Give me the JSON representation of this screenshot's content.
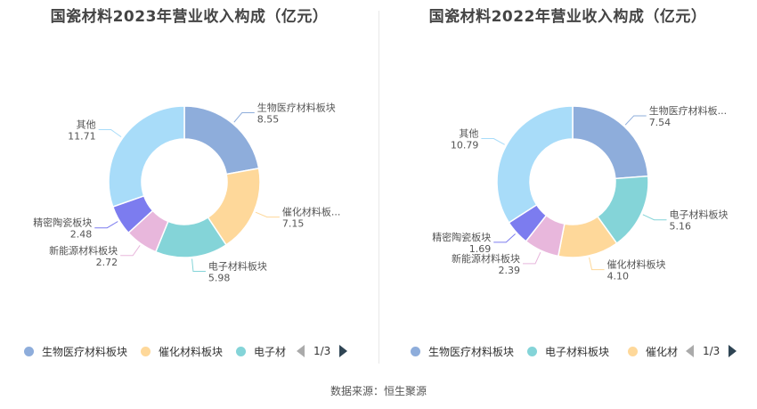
{
  "charts": [
    {
      "title": "国瓷材料2023年营业收入构成（亿元）",
      "legend_items": [
        "生物医疗材料板块",
        "催化材料板块",
        "电子材"
      ],
      "pager": "1/3"
    },
    {
      "title": "国瓷材料2022年营业收入构成（亿元）",
      "legend_items": [
        "生物医疗材料板块",
        "电子材料板块",
        "催化材"
      ],
      "pager": "1/3"
    }
  ],
  "source": "数据来源：恒生聚源",
  "colors": {
    "生物医疗材料板块": "#8eaddb",
    "电子材料板块": "#84d4d8",
    "催化材料板块": "#fed89a",
    "新能源材料板块": "#e8b7dc",
    "精密陶瓷板块": "#7c7cef",
    "其他": "#a8dcf9"
  },
  "chart_data": [
    {
      "type": "pie",
      "title": "国瓷材料2023年营业收入构成（亿元）",
      "slices": [
        {
          "name": "生物医疗材料板块",
          "label": "生物医疗材料板块",
          "value": 8.55,
          "value_text": "8.55",
          "color": "#8eaddb"
        },
        {
          "name": "催化材料板块",
          "label": "催化材料板...",
          "value": 7.15,
          "value_text": "7.15",
          "color": "#fed89a"
        },
        {
          "name": "电子材料板块",
          "label": "电子材料板块",
          "value": 5.98,
          "value_text": "5.98",
          "color": "#84d4d8"
        },
        {
          "name": "新能源材料板块",
          "label": "新能源材料板块",
          "value": 2.72,
          "value_text": "2.72",
          "color": "#e8b7dc"
        },
        {
          "name": "精密陶瓷板块",
          "label": "精密陶瓷板块",
          "value": 2.48,
          "value_text": "2.48",
          "color": "#7c7cef"
        },
        {
          "name": "其他",
          "label": "其他",
          "value": 11.71,
          "value_text": "11.71",
          "color": "#a8dcf9"
        }
      ]
    },
    {
      "type": "pie",
      "title": "国瓷材料2022年营业收入构成（亿元）",
      "slices": [
        {
          "name": "生物医疗材料板块",
          "label": "生物医疗材料板...",
          "value": 7.54,
          "value_text": "7.54",
          "color": "#8eaddb"
        },
        {
          "name": "电子材料板块",
          "label": "电子材料板块",
          "value": 5.16,
          "value_text": "5.16",
          "color": "#84d4d8"
        },
        {
          "name": "催化材料板块",
          "label": "催化材料板块",
          "value": 4.1,
          "value_text": "4.10",
          "color": "#fed89a"
        },
        {
          "name": "新能源材料板块",
          "label": "新能源材料板块",
          "value": 2.39,
          "value_text": "2.39",
          "color": "#e8b7dc"
        },
        {
          "name": "精密陶瓷板块",
          "label": "精密陶瓷板块",
          "value": 1.69,
          "value_text": "1.69",
          "color": "#7c7cef"
        },
        {
          "name": "其他",
          "label": "其他",
          "value": 10.79,
          "value_text": "10.79",
          "color": "#a8dcf9"
        }
      ]
    }
  ]
}
